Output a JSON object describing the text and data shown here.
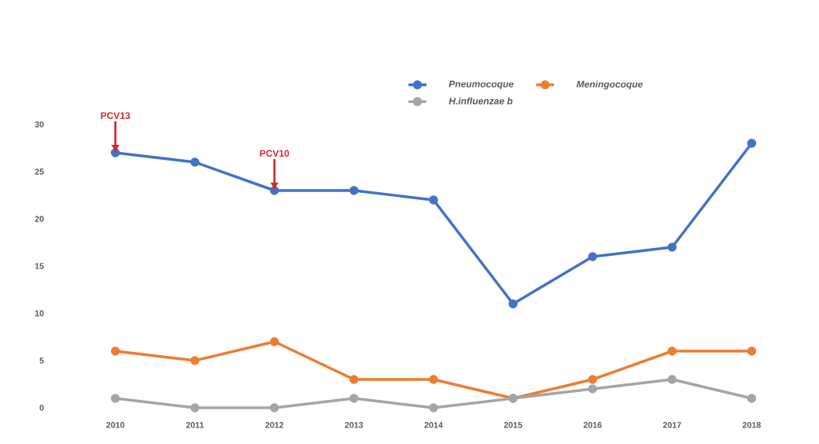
{
  "chart_data": {
    "type": "line",
    "categories": [
      "2010",
      "2011",
      "2012",
      "2013",
      "2014",
      "2015",
      "2016",
      "2017",
      "2018"
    ],
    "series": [
      {
        "name": "Pneumocoque",
        "color": "#4472c4",
        "values": [
          27,
          26,
          23,
          23,
          22,
          11,
          16,
          17,
          28
        ]
      },
      {
        "name": "Meningocoque",
        "color": "#ed7d31",
        "values": [
          6,
          5,
          7,
          3,
          3,
          1,
          3,
          6,
          6
        ]
      },
      {
        "name": "H.influenzae b",
        "color": "#a5a5a5",
        "values": [
          1,
          0,
          0,
          1,
          0,
          1,
          2,
          3,
          1
        ]
      }
    ],
    "ylim": [
      0,
      30
    ],
    "yticks": [
      0,
      5,
      10,
      15,
      20,
      25,
      30
    ],
    "grid": false,
    "legend": "top right",
    "marker": "circle",
    "line_style": "solid",
    "annotations": [
      {
        "text": "PCV13",
        "x": "2010",
        "y": 27
      },
      {
        "text": "PCV10",
        "x": "2012",
        "y": 23
      }
    ]
  }
}
